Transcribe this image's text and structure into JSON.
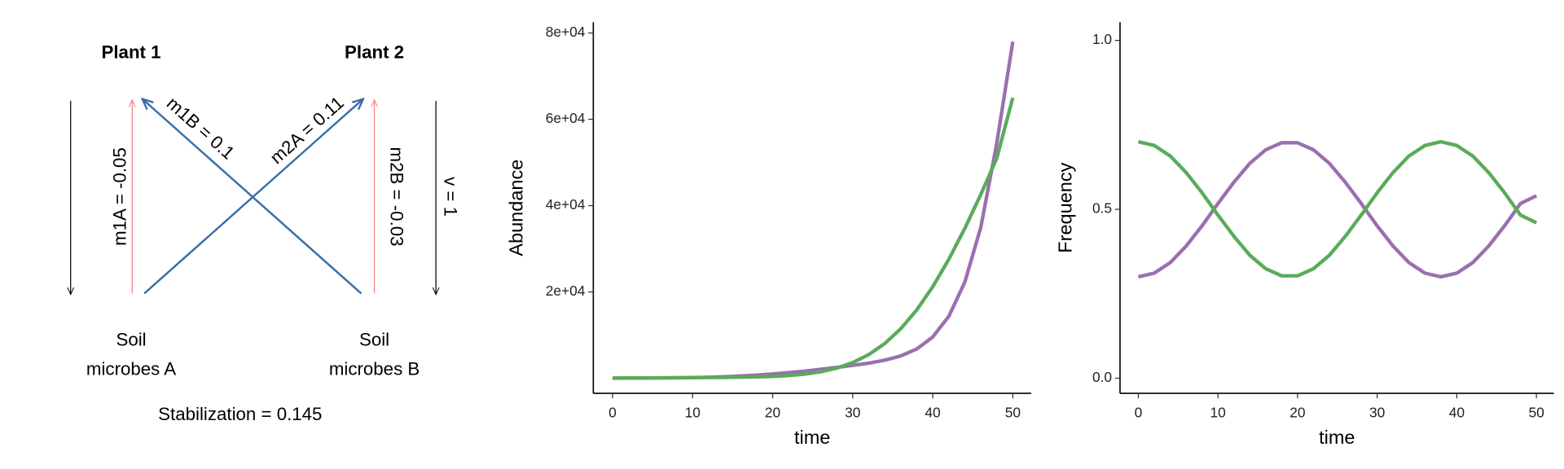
{
  "diagram": {
    "plant1": "Plant 1",
    "plant2": "Plant 2",
    "m1A": "m1A = -0.05",
    "m1B": "m1B = 0.1",
    "m2A": "m2A = 0.11",
    "m2B": "m2B = -0.03",
    "v": "v = 1",
    "soilA": [
      "Soil",
      "microbes A"
    ],
    "soilB": [
      "Soil",
      "microbes B"
    ],
    "stabilization": "Stabilization = 0.145"
  },
  "chart_data": [
    {
      "type": "line",
      "x_label": "time",
      "y_label": "Abundance",
      "x": [
        0,
        2,
        4,
        6,
        8,
        10,
        12,
        14,
        16,
        18,
        20,
        22,
        24,
        26,
        28,
        30,
        32,
        34,
        36,
        38,
        40,
        42,
        44,
        46,
        48,
        50
      ],
      "series": [
        {
          "color": "#9a6fb0",
          "values": [
            20,
            28,
            41,
            64,
            101,
            157,
            239,
            357,
            516,
            725,
            986,
            1300,
            1664,
            2068,
            2504,
            2975,
            3506,
            4180,
            5165,
            6784,
            9564,
            14328,
            22254,
            34955,
            54484,
            78000
          ]
        },
        {
          "color": "#5aab5a",
          "values": [
            45,
            61,
            79,
            100,
            122,
            147,
            173,
            205,
            248,
            315,
            428,
            624,
            954,
            1495,
            2344,
            3622,
            5470,
            8034,
            11455,
            15830,
            21207,
            27542,
            34719,
            42568,
            51003,
            65000
          ]
        }
      ],
      "xlim": [
        -2.4,
        52.3
      ],
      "ylim": [
        -3500,
        82500
      ],
      "xticks": [
        0,
        10,
        20,
        30,
        40,
        50
      ],
      "yticks": [
        {
          "value": 20000,
          "label": "2e+04"
        },
        {
          "value": 40000,
          "label": "4e+04"
        },
        {
          "value": 60000,
          "label": "6e+04"
        },
        {
          "value": 80000,
          "label": "8e+04"
        }
      ]
    },
    {
      "type": "line",
      "x_label": "time",
      "y_label": "Frequency",
      "x": [
        0,
        2,
        4,
        6,
        8,
        10,
        12,
        14,
        16,
        18,
        20,
        22,
        24,
        26,
        28,
        30,
        32,
        34,
        36,
        38,
        40,
        42,
        44,
        46,
        48,
        50
      ],
      "series": [
        {
          "color": "#9a6fb0",
          "values": [
            0.3,
            0.311,
            0.342,
            0.391,
            0.451,
            0.517,
            0.58,
            0.636,
            0.676,
            0.697,
            0.697,
            0.676,
            0.636,
            0.58,
            0.517,
            0.451,
            0.391,
            0.342,
            0.311,
            0.3,
            0.311,
            0.342,
            0.391,
            0.451,
            0.517,
            0.54
          ]
        },
        {
          "color": "#5aab5a",
          "values": [
            0.7,
            0.689,
            0.658,
            0.609,
            0.549,
            0.483,
            0.42,
            0.364,
            0.324,
            0.303,
            0.303,
            0.324,
            0.364,
            0.42,
            0.483,
            0.549,
            0.609,
            0.658,
            0.689,
            0.7,
            0.689,
            0.658,
            0.609,
            0.549,
            0.483,
            0.46
          ]
        }
      ],
      "xlim": [
        -2.3,
        52.2
      ],
      "ylim": [
        -0.045,
        1.054
      ],
      "xticks": [
        0,
        10,
        20,
        30,
        40,
        50
      ],
      "yticks": [
        {
          "value": 0,
          "label": "0.0"
        },
        0.5,
        {
          "value": 1,
          "label": "1.0"
        }
      ]
    }
  ]
}
